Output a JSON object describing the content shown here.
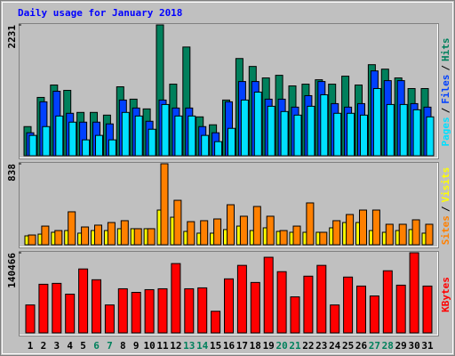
{
  "title": "Daily usage for January 2018",
  "chart_data": [
    {
      "type": "bar",
      "ylim": [
        0,
        2231
      ],
      "yticks": [
        2231
      ],
      "legend_separator": "/",
      "series": [
        {
          "name": "Pages",
          "color": "#00e0ff",
          "values": [
            347,
            497,
            678,
            573,
            271,
            347,
            271,
            739,
            678,
            452,
            874,
            678,
            678,
            347,
            241,
            467,
            950,
            1085,
            844,
            754,
            693,
            844,
            1040,
            724,
            724,
            693,
            1146,
            874,
            874,
            784,
            663
          ]
        },
        {
          "name": "Files",
          "color": "#0040ff",
          "values": [
            392,
            920,
            1100,
            724,
            573,
            573,
            543,
            950,
            814,
            588,
            950,
            814,
            814,
            497,
            392,
            920,
            1266,
            1266,
            965,
            965,
            829,
            1025,
            1266,
            889,
            829,
            889,
            1447,
            1281,
            1281,
            889,
            829
          ]
        },
        {
          "name": "Hits",
          "color": "#00805c",
          "values": [
            497,
            995,
            1206,
            1115,
            739,
            739,
            693,
            1176,
            965,
            799,
            2231,
            1221,
            1854,
            663,
            528,
            950,
            1658,
            1523,
            1327,
            1372,
            1191,
            1221,
            1296,
            1221,
            1357,
            1206,
            1553,
            1477,
            1327,
            1146,
            1146
          ]
        }
      ]
    },
    {
      "type": "bar",
      "ylim": [
        0,
        838
      ],
      "yticks": [
        838
      ],
      "legend_separator": "/",
      "series": [
        {
          "name": "Sites",
          "color": "#ff8000",
          "values": [
            101,
            193,
            147,
            341,
            184,
            203,
            230,
            249,
            166,
            166,
            838,
            460,
            239,
            249,
            267,
            414,
            295,
            396,
            295,
            147,
            193,
            433,
            129,
            249,
            313,
            359,
            359,
            212,
            212,
            258,
            212
          ]
        },
        {
          "name": "Visits",
          "color": "#ffff00",
          "values": [
            92,
            110,
            129,
            147,
            120,
            147,
            147,
            166,
            166,
            166,
            359,
            285,
            138,
            120,
            120,
            157,
            193,
            147,
            175,
            138,
            129,
            129,
            129,
            175,
            230,
            230,
            147,
            129,
            147,
            157,
            120
          ]
        }
      ]
    },
    {
      "type": "bar",
      "ylim": [
        0,
        140466
      ],
      "yticks": [
        140466
      ],
      "legend_separator": "/",
      "series": [
        {
          "name": "KBytes",
          "color": "#ff0000",
          "values": [
            48926,
            85227,
            86805,
            67866,
            112059,
            93118,
            48926,
            77335,
            71022,
            75757,
            77335,
            121528,
            77335,
            78913,
            37878,
            94696,
            118371,
            88383,
            132575,
            107321,
            63131,
            99431,
            118371,
            48926,
            97853,
            82070,
            64709,
            108900,
            83648,
            140466,
            82070
          ]
        }
      ],
      "categories": [
        "1",
        "2",
        "3",
        "4",
        "5",
        "6",
        "7",
        "8",
        "9",
        "10",
        "11",
        "12",
        "13",
        "14",
        "15",
        "16",
        "17",
        "18",
        "19",
        "20",
        "21",
        "22",
        "23",
        "24",
        "25",
        "26",
        "27",
        "28",
        "29",
        "30",
        "31"
      ],
      "category_colors": [
        "#000000",
        "#000000",
        "#000000",
        "#000000",
        "#000000",
        "#00805c",
        "#00805c",
        "#000000",
        "#000000",
        "#000000",
        "#000000",
        "#000000",
        "#00805c",
        "#00805c",
        "#000000",
        "#000000",
        "#000000",
        "#000000",
        "#000000",
        "#00805c",
        "#00805c",
        "#000000",
        "#000000",
        "#000000",
        "#000000",
        "#000000",
        "#00805c",
        "#00805c",
        "#000000",
        "#000000",
        "#000000"
      ]
    }
  ]
}
